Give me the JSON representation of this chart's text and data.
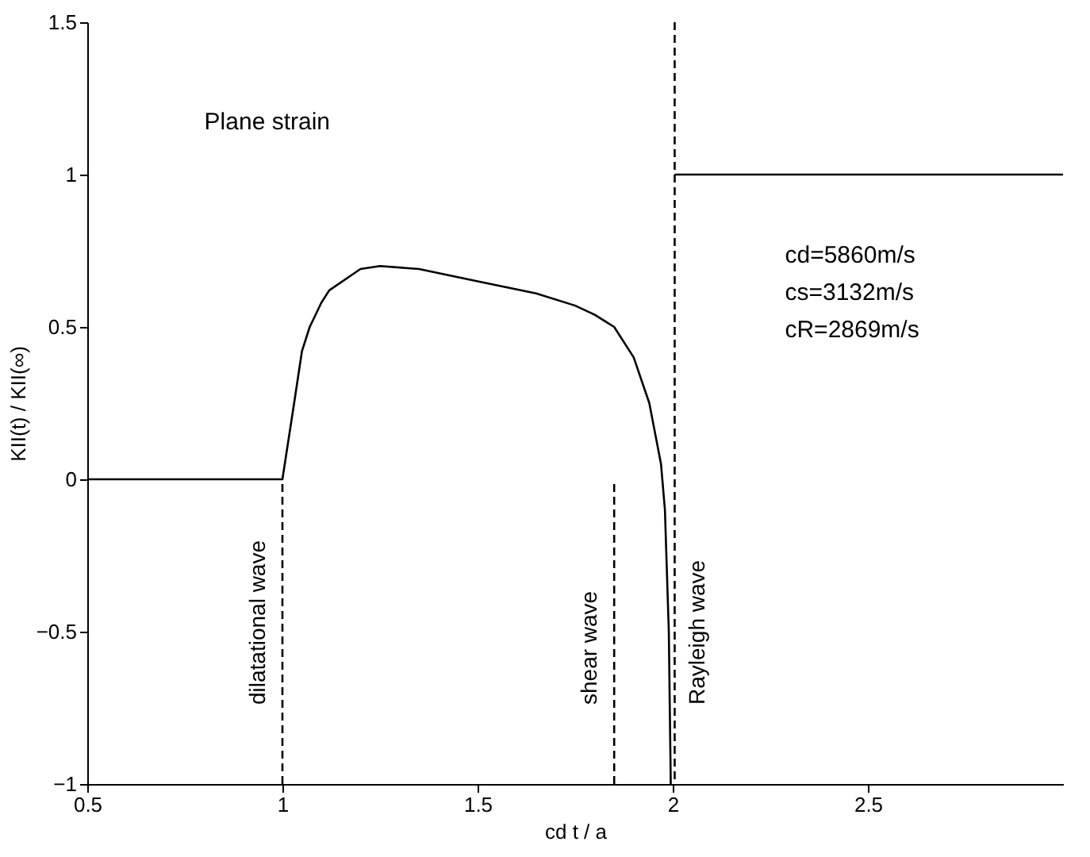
{
  "chart_data": {
    "type": "line",
    "xlabel": "cd t / a",
    "ylabel": "KII(t) / KII(∞)",
    "xlim": [
      0.5,
      3
    ],
    "xticks": [
      0.5,
      1,
      1.5,
      2,
      2.5
    ],
    "ylim": [
      -1,
      1.5
    ],
    "yticks": [
      -1,
      -0.5,
      0,
      0.5,
      1,
      1.5
    ],
    "grid": false,
    "legend": false,
    "marker": "none",
    "series": [
      {
        "color": "#000000",
        "line_style": "solid",
        "x": [
          0.5,
          1,
          1.03,
          1.05,
          1.07,
          1.1,
          1.12,
          1.2,
          1.25,
          1.35,
          1.5,
          1.65,
          1.75,
          1.8,
          1.85,
          1.9,
          1.94,
          1.97,
          1.98,
          1.99,
          1.995,
          2.0,
          2.005,
          3
        ],
        "values": [
          0,
          0,
          0.25,
          0.42,
          0.5,
          0.58,
          0.62,
          0.69,
          0.7,
          0.69,
          0.65,
          0.61,
          0.57,
          0.54,
          0.5,
          0.4,
          0.25,
          0.05,
          -0.1,
          -0.5,
          -1,
          null,
          1,
          1
        ]
      },
      {
        "name": "dilatational wave",
        "color": "#000000",
        "line_style": "dashed",
        "x": [
          1,
          1
        ],
        "values": [
          -1,
          0
        ]
      },
      {
        "name": "shear wave",
        "color": "#000000",
        "line_style": "dashed",
        "x": [
          1.85,
          1.85
        ],
        "values": [
          -1,
          0
        ]
      }
    ],
    "ref_lines": [
      {
        "axis": "x",
        "value": 2.005,
        "label": "Rayleigh wave",
        "line_style": "dashed",
        "color": "#000000"
      }
    ],
    "annotations": [
      "Plane strain",
      "cd=5860m/s",
      "cs=3132m/s",
      "cR=2869m/s"
    ]
  }
}
